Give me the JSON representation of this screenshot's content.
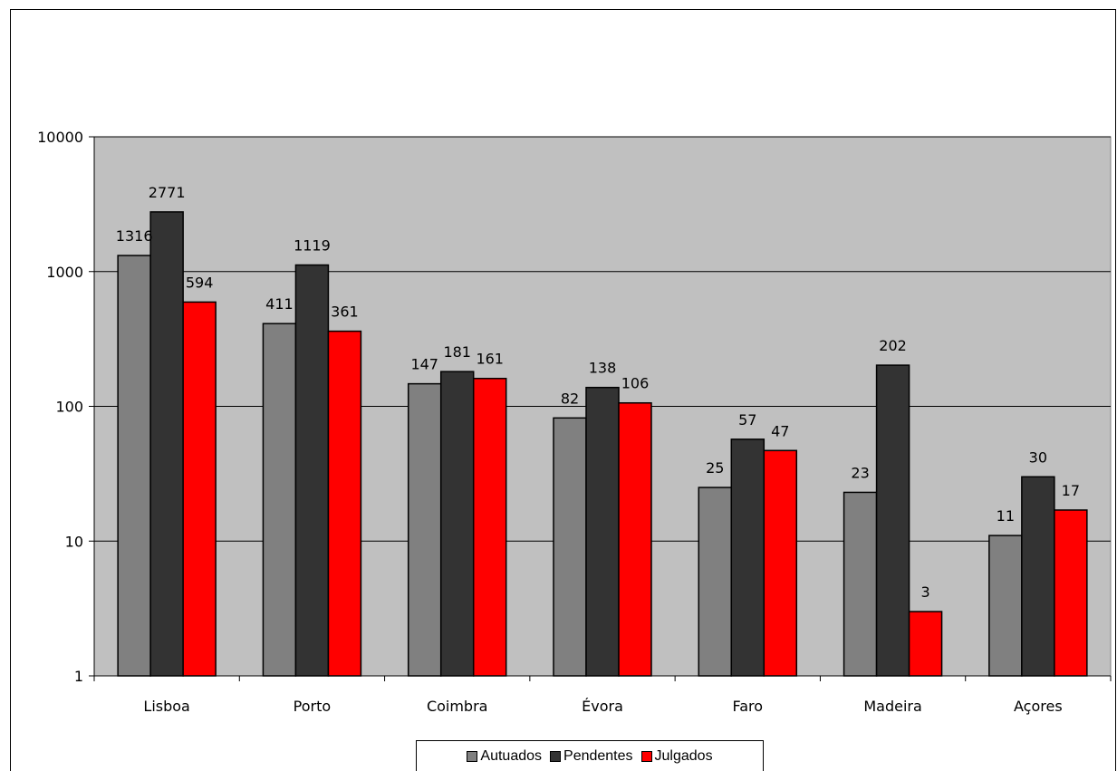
{
  "chart_data": {
    "type": "bar",
    "scale": "log",
    "categories": [
      "Lisboa",
      "Porto",
      "Coimbra",
      "Évora",
      "Faro",
      "Madeira",
      "Açores"
    ],
    "series": [
      {
        "name": "Autuados",
        "color": "#808080",
        "values": [
          1316,
          411,
          147,
          82,
          25,
          23,
          11
        ]
      },
      {
        "name": "Pendentes",
        "color": "#333333",
        "values": [
          2771,
          1119,
          181,
          138,
          57,
          202,
          30
        ]
      },
      {
        "name": "Julgados",
        "color": "#ff0000",
        "values": [
          594,
          361,
          161,
          106,
          47,
          3,
          17
        ]
      }
    ],
    "y_ticks": [
      "1",
      "10",
      "100",
      "1000",
      "10000"
    ],
    "ylim": [
      1,
      10000
    ],
    "grid": true,
    "plot_background": "#c0c0c0",
    "legend_position": "bottom"
  }
}
